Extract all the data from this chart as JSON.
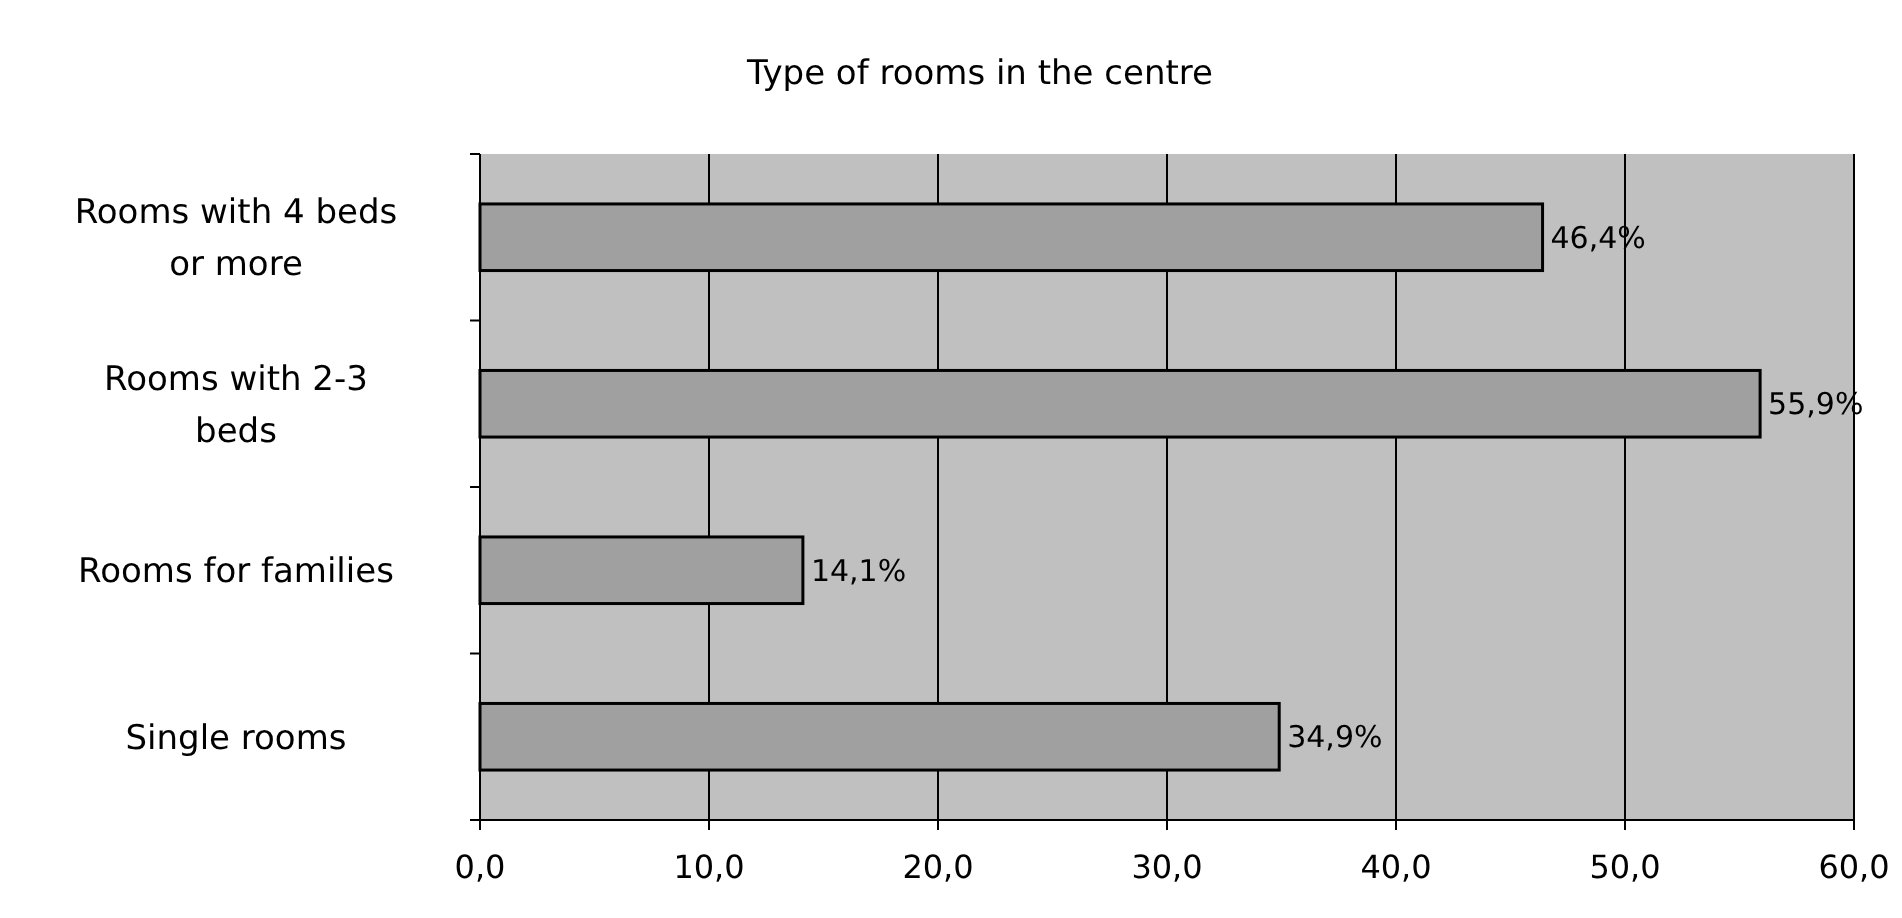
{
  "chart_data": {
    "type": "bar",
    "orientation": "horizontal",
    "title": "Type of rooms in the centre",
    "categories": [
      "Rooms with 4 beds or more",
      "Rooms with 2-3 beds",
      "Rooms for families",
      "Single rooms"
    ],
    "values": [
      46.4,
      55.9,
      14.1,
      34.9
    ],
    "value_labels": [
      "46,4%",
      "55,9%",
      "14,1%",
      "34,9%"
    ],
    "color": "#a0a0a0",
    "xlim": [
      0,
      60
    ],
    "xticks": [
      {
        "value": 0,
        "label": "0,0"
      },
      {
        "value": 10,
        "label": "10,0"
      },
      {
        "value": 20,
        "label": "20,0"
      },
      {
        "value": 30,
        "label": "30,0"
      },
      {
        "value": 40,
        "label": "40,0"
      },
      {
        "value": 50,
        "label": "50,0"
      },
      {
        "value": 60,
        "label": "60,0"
      }
    ],
    "grid": "x"
  }
}
